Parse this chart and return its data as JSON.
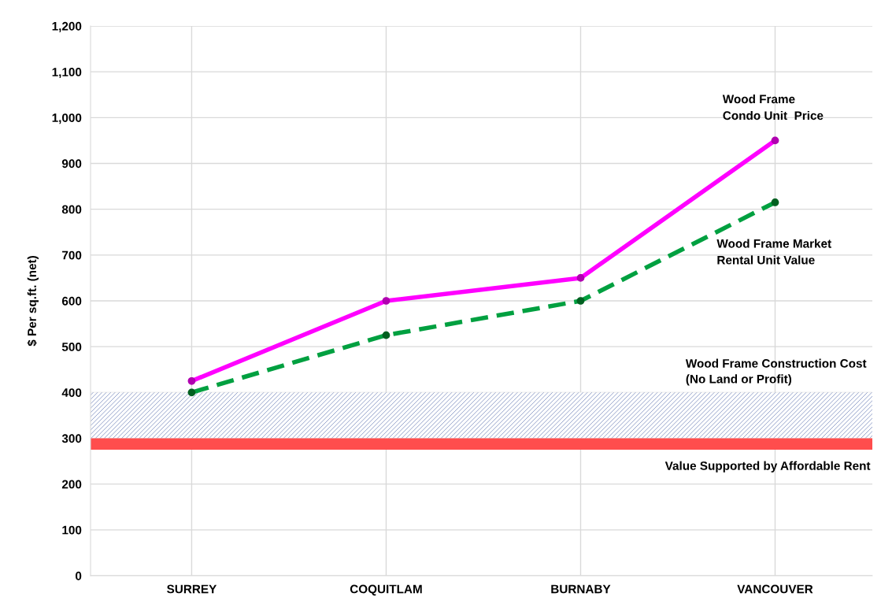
{
  "chart_data": {
    "type": "line",
    "ylabel": "$ Per sq.ft. (net)",
    "categories": [
      "SURREY",
      "COQUITLAM",
      "BURNABY",
      "VANCOUVER"
    ],
    "series": [
      {
        "name": "Wood Frame\nCondo Unit  Price",
        "color": "#ff00ff",
        "values": [
          425,
          600,
          650,
          950
        ],
        "line_style": "solid"
      },
      {
        "name": "Wood Frame Market\nRental Unit Value",
        "color": "#00a040",
        "values": [
          400,
          525,
          600,
          815
        ],
        "line_style": "dashed"
      }
    ],
    "bands": [
      {
        "axis": "y",
        "from": 300,
        "to": 400,
        "label": "Wood Frame Construction Cost\n(No Land or Profit)",
        "color": "#8090c0"
      },
      {
        "axis": "y",
        "from": 275,
        "to": 300,
        "label": "Value Supported by Affordable Rent",
        "color": "#ff4d4d"
      }
    ],
    "ylim": [
      0,
      1200
    ],
    "yticks": [
      0,
      {
        "value": 100,
        "label": "100"
      },
      200,
      300,
      400,
      500,
      600,
      700,
      800,
      900,
      {
        "value": 1000,
        "label": "1,000"
      },
      {
        "value": 1100,
        "label": "1,100"
      },
      {
        "value": 1200,
        "label": "1,200"
      }
    ],
    "grid": true,
    "marker": "circle"
  }
}
